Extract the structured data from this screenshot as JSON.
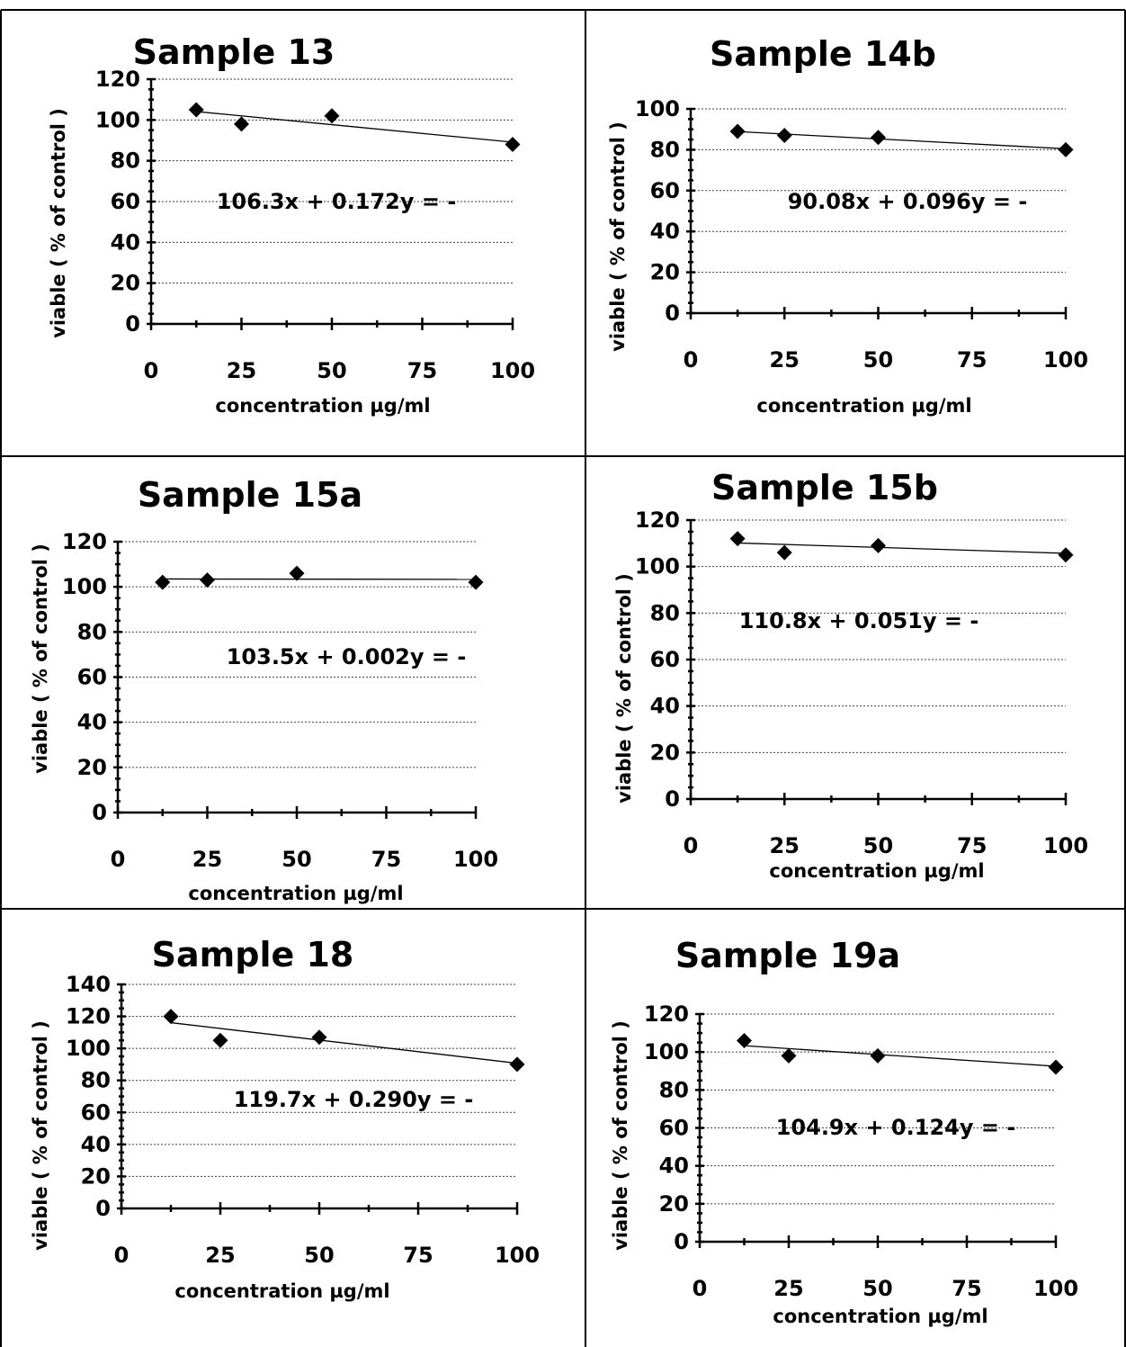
{
  "chart_data": [
    {
      "type": "scatter",
      "title": "Sample 13",
      "xlabel": "concentration µg/ml",
      "ylabel": "viable ( % of control )",
      "equation": "106.3x + 0.172y = -",
      "x": [
        12.5,
        25,
        50,
        100
      ],
      "y": [
        105,
        98,
        102,
        88
      ],
      "trendline": {
        "slope": -0.172,
        "intercept": 106.3
      },
      "xlim": [
        0,
        100
      ],
      "ylim": [
        0,
        120
      ],
      "xticks": [
        0,
        25,
        50,
        75,
        100
      ],
      "yticks": [
        0,
        20,
        40,
        60,
        80,
        100,
        120
      ],
      "grid": true
    },
    {
      "type": "scatter",
      "title": "Sample 14b",
      "xlabel": "concentration µg/ml",
      "ylabel": "viable ( % of control )",
      "equation": "90.08x + 0.096y = -",
      "x": [
        12.5,
        25,
        50,
        100
      ],
      "y": [
        89,
        87,
        86,
        80
      ],
      "trendline": {
        "slope": -0.096,
        "intercept": 90.08
      },
      "xlim": [
        0,
        100
      ],
      "ylim": [
        0,
        100
      ],
      "xticks": [
        0,
        25,
        50,
        75,
        100
      ],
      "yticks": [
        0,
        20,
        40,
        60,
        80,
        100
      ],
      "grid": true
    },
    {
      "type": "scatter",
      "title": "Sample 15a",
      "xlabel": "concentration µg/ml",
      "ylabel": "viable ( % of control )",
      "equation": "103.5x + 0.002y = -",
      "x": [
        12.5,
        25,
        50,
        100
      ],
      "y": [
        102,
        103,
        106,
        102
      ],
      "trendline": {
        "slope": -0.002,
        "intercept": 103.5
      },
      "xlim": [
        0,
        100
      ],
      "ylim": [
        0,
        120
      ],
      "xticks": [
        0,
        25,
        50,
        75,
        100
      ],
      "yticks": [
        0,
        20,
        40,
        60,
        80,
        100,
        120
      ],
      "grid": true
    },
    {
      "type": "scatter",
      "title": "Sample 15b",
      "xlabel": "concentration µg/ml",
      "ylabel": "viable ( % of control )",
      "equation": "110.8x + 0.051y = -",
      "x": [
        12.5,
        25,
        50,
        100
      ],
      "y": [
        112,
        106,
        109,
        105
      ],
      "trendline": {
        "slope": -0.051,
        "intercept": 110.8
      },
      "xlim": [
        0,
        100
      ],
      "ylim": [
        0,
        120
      ],
      "xticks": [
        0,
        25,
        50,
        75,
        100
      ],
      "yticks": [
        0,
        20,
        40,
        60,
        80,
        100,
        120
      ],
      "grid": true
    },
    {
      "type": "scatter",
      "title": "Sample 18",
      "xlabel": "concentration µg/ml",
      "ylabel": "viable ( % of control )",
      "equation": "119.7x + 0.290y = -",
      "x": [
        12.5,
        25,
        50,
        100
      ],
      "y": [
        120,
        105,
        107,
        90
      ],
      "trendline": {
        "slope": -0.29,
        "intercept": 119.7
      },
      "xlim": [
        0,
        100
      ],
      "ylim": [
        0,
        140
      ],
      "xticks": [
        0,
        25,
        50,
        75,
        100
      ],
      "yticks": [
        0,
        20,
        40,
        60,
        80,
        100,
        120,
        140
      ],
      "grid": true
    },
    {
      "type": "scatter",
      "title": "Sample 19a",
      "xlabel": "concentration µg/ml",
      "ylabel": "viable ( % of control )",
      "equation": "104.9x + 0.124y = -",
      "x": [
        12.5,
        25,
        50,
        100
      ],
      "y": [
        106,
        98,
        98,
        92
      ],
      "trendline": {
        "slope": -0.124,
        "intercept": 104.9
      },
      "xlim": [
        0,
        100
      ],
      "ylim": [
        0,
        120
      ],
      "xticks": [
        0,
        25,
        50,
        75,
        100
      ],
      "yticks": [
        0,
        20,
        40,
        60,
        80,
        100,
        120
      ],
      "grid": true
    }
  ]
}
